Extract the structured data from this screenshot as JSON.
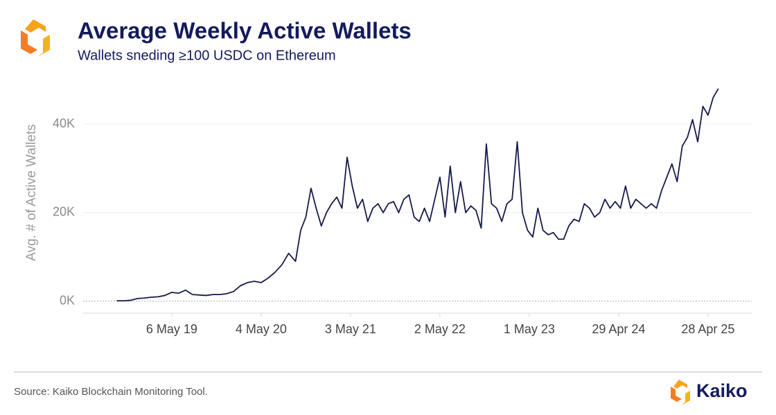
{
  "chart_data": {
    "type": "line",
    "title": "Average Weekly Active Wallets",
    "subtitle": "Wallets sneding ≥100 USDC on Ethereum",
    "y_label": "Avg. # of Active Wallets",
    "source": "Source: Kaiko Blockchain Monitoring Tool.",
    "brand": "Kaiko",
    "grid": true,
    "xlim": [
      "2018-05-10",
      "2025-10-23"
    ],
    "ylim": [
      -2700,
      50800
    ],
    "yticks": [
      {
        "value": 0,
        "label": "0K"
      },
      {
        "value": 20000,
        "label": "20K"
      },
      {
        "value": 40000,
        "label": "40K"
      }
    ],
    "xticks": [
      {
        "value": "2019-05-06",
        "label": "6 May 19"
      },
      {
        "value": "2020-05-04",
        "label": "4 May 20"
      },
      {
        "value": "2021-05-03",
        "label": "3 May 21"
      },
      {
        "value": "2022-05-02",
        "label": "2 May 22"
      },
      {
        "value": "2023-05-01",
        "label": "1 May 23"
      },
      {
        "value": "2024-04-29",
        "label": "29 Apr 24"
      },
      {
        "value": "2025-04-28",
        "label": "28 Apr 25"
      }
    ],
    "x": [
      "2018-09-24",
      "2018-10-22",
      "2018-11-19",
      "2018-12-17",
      "2019-01-14",
      "2019-02-11",
      "2019-03-11",
      "2019-04-08",
      "2019-05-06",
      "2019-06-03",
      "2019-07-01",
      "2019-07-29",
      "2019-08-26",
      "2019-09-23",
      "2019-10-21",
      "2019-11-18",
      "2019-12-16",
      "2020-01-13",
      "2020-02-10",
      "2020-03-09",
      "2020-04-06",
      "2020-05-04",
      "2020-06-01",
      "2020-06-29",
      "2020-07-27",
      "2020-08-24",
      "2020-09-21",
      "2020-10-12",
      "2020-11-02",
      "2020-11-23",
      "2020-12-14",
      "2021-01-04",
      "2021-01-25",
      "2021-02-15",
      "2021-03-08",
      "2021-03-29",
      "2021-04-19",
      "2021-05-10",
      "2021-05-31",
      "2021-06-21",
      "2021-07-12",
      "2021-08-02",
      "2021-08-23",
      "2021-09-13",
      "2021-10-04",
      "2021-10-25",
      "2021-11-15",
      "2021-12-06",
      "2021-12-27",
      "2022-01-17",
      "2022-02-07",
      "2022-02-28",
      "2022-03-21",
      "2022-04-11",
      "2022-05-02",
      "2022-05-23",
      "2022-06-13",
      "2022-07-04",
      "2022-07-25",
      "2022-08-15",
      "2022-09-05",
      "2022-09-26",
      "2022-10-17",
      "2022-11-07",
      "2022-11-28",
      "2022-12-19",
      "2023-01-09",
      "2023-01-30",
      "2023-02-20",
      "2023-03-13",
      "2023-04-03",
      "2023-04-24",
      "2023-05-15",
      "2023-06-05",
      "2023-06-26",
      "2023-07-17",
      "2023-08-07",
      "2023-08-28",
      "2023-09-18",
      "2023-10-09",
      "2023-10-30",
      "2023-11-20",
      "2023-12-11",
      "2024-01-01",
      "2024-01-22",
      "2024-02-12",
      "2024-03-04",
      "2024-03-25",
      "2024-04-15",
      "2024-05-06",
      "2024-05-27",
      "2024-06-17",
      "2024-07-08",
      "2024-07-29",
      "2024-08-19",
      "2024-09-09",
      "2024-09-30",
      "2024-10-21",
      "2024-11-11",
      "2024-12-02",
      "2024-12-23",
      "2025-01-13",
      "2025-02-03",
      "2025-02-24",
      "2025-03-17",
      "2025-04-07",
      "2025-04-28",
      "2025-05-19",
      "2025-06-09"
    ],
    "series": [
      {
        "name": "Avg. # of Active Wallets",
        "color": "#141a4a",
        "values": [
          100,
          100,
          200,
          600,
          700,
          900,
          1000,
          1300,
          2000,
          1800,
          2500,
          1500,
          1400,
          1300,
          1500,
          1500,
          1700,
          2200,
          3500,
          4200,
          4500,
          4200,
          5200,
          6500,
          8200,
          10800,
          9000,
          16000,
          19000,
          25500,
          21000,
          17000,
          20000,
          22000,
          23500,
          21000,
          32500,
          26000,
          21000,
          23000,
          18000,
          21000,
          22000,
          20000,
          22000,
          22500,
          20000,
          23000,
          24000,
          19000,
          18000,
          21000,
          18000,
          23000,
          28000,
          19000,
          30500,
          20000,
          27000,
          20000,
          21500,
          20500,
          16500,
          35500,
          22000,
          21000,
          18000,
          22000,
          23000,
          36000,
          20000,
          16000,
          14500,
          21000,
          16000,
          15000,
          15500,
          14000,
          14000,
          17000,
          18500,
          18000,
          22000,
          21000,
          19000,
          20000,
          23000,
          21000,
          22500,
          21000,
          26000,
          21000,
          23000,
          22000,
          21000,
          22000,
          21000,
          25000,
          28000,
          31000,
          27000,
          35000,
          37000,
          41000,
          36000,
          44000,
          42000,
          46000,
          48000
        ]
      }
    ]
  }
}
